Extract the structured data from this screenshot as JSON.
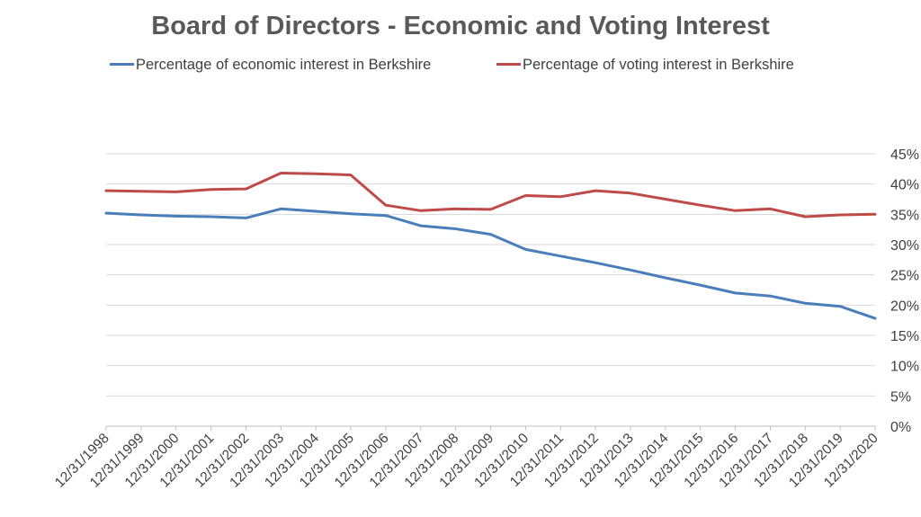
{
  "chart_data": {
    "type": "line",
    "title": "Board of Directors - Economic and Voting Interest",
    "xlabel": "",
    "ylabel": "",
    "ylim": [
      0,
      45
    ],
    "y_ticks": [
      "0%",
      "5%",
      "10%",
      "15%",
      "20%",
      "25%",
      "30%",
      "35%",
      "40%",
      "45%"
    ],
    "y_axis_position": "right",
    "grid": true,
    "legend_position": "top",
    "categories": [
      "12/31/1998",
      "12/31/1999",
      "12/31/2000",
      "12/31/2001",
      "12/31/2002",
      "12/31/2003",
      "12/31/2004",
      "12/31/2005",
      "12/31/2006",
      "12/31/2007",
      "12/31/2008",
      "12/31/2009",
      "12/31/2010",
      "12/31/2011",
      "12/31/2012",
      "12/31/2013",
      "12/31/2014",
      "12/31/2015",
      "12/31/2016",
      "12/31/2017",
      "12/31/2018",
      "12/31/2019",
      "12/31/2020"
    ],
    "series": [
      {
        "name": "Percentage of economic interest in Berkshire",
        "color": "#4a7ebb",
        "values": [
          35.2,
          34.9,
          34.7,
          34.6,
          34.4,
          35.9,
          35.5,
          35.1,
          34.8,
          33.1,
          32.6,
          31.7,
          29.2,
          28.1,
          27.0,
          25.8,
          24.5,
          23.3,
          22.0,
          21.5,
          20.3,
          19.8,
          17.8
        ]
      },
      {
        "name": "Percentage of voting interest in Berkshire",
        "color": "#be4b48",
        "values": [
          38.9,
          38.8,
          38.7,
          39.1,
          39.2,
          41.8,
          41.7,
          41.5,
          36.5,
          35.6,
          35.9,
          35.8,
          38.1,
          37.9,
          38.9,
          38.5,
          37.5,
          36.5,
          35.6,
          35.9,
          34.6,
          34.9,
          35.0
        ]
      }
    ]
  }
}
